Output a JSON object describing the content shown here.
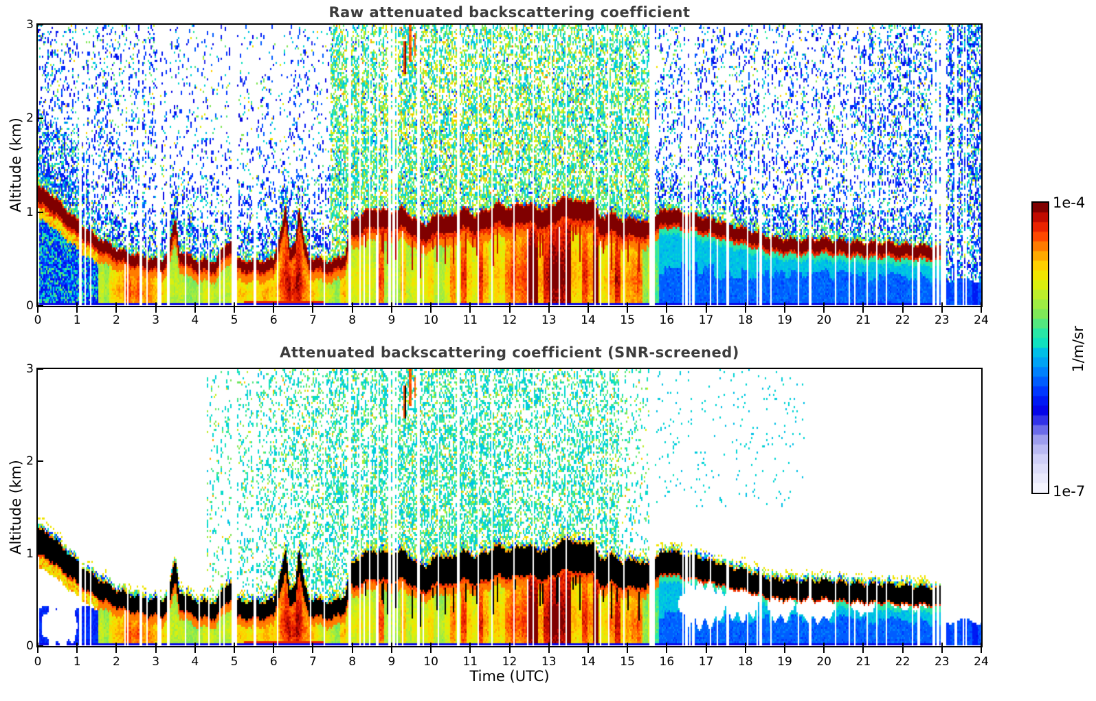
{
  "figure": {
    "background": "#ffffff",
    "title_color": "#3c3c3c"
  },
  "chart_data": {
    "type": "heatmap",
    "panels": [
      {
        "id": "raw",
        "title": "Raw attenuated backscattering coefficient",
        "screened": false
      },
      {
        "id": "screened",
        "title": "Attenuated backscattering coefficient (SNR-screened)",
        "screened": true
      }
    ],
    "x": {
      "label": "Time (UTC)",
      "min": 0,
      "max": 24,
      "ticks": [
        "0",
        "1",
        "2",
        "3",
        "4",
        "5",
        "6",
        "7",
        "8",
        "9",
        "10",
        "11",
        "12",
        "13",
        "14",
        "15",
        "16",
        "17",
        "18",
        "19",
        "20",
        "21",
        "22",
        "23",
        "24"
      ]
    },
    "y": {
      "label": "Altitude (km)",
      "min": 0,
      "max": 3,
      "ticks": [
        "0",
        "1",
        "2",
        "3"
      ]
    },
    "colorbar": {
      "max_label": "1e-4",
      "min_label": "1e-7",
      "unit": "1/m/sr",
      "scale": "log10",
      "vmin": 1e-07,
      "vmax": 0.0001,
      "steps": 30,
      "stops": [
        [
          0.0,
          "#f4f4fe"
        ],
        [
          0.05,
          "#e4e4fb"
        ],
        [
          0.1,
          "#cfcff8"
        ],
        [
          0.14,
          "#b4b4f2"
        ],
        [
          0.18,
          "#9292ec"
        ],
        [
          0.22,
          "#4444e8"
        ],
        [
          0.27,
          "#0000e8"
        ],
        [
          0.33,
          "#0033ff"
        ],
        [
          0.39,
          "#0077ff"
        ],
        [
          0.45,
          "#00b4f0"
        ],
        [
          0.51,
          "#00dcd0"
        ],
        [
          0.57,
          "#2ae8a4"
        ],
        [
          0.63,
          "#7ce85a"
        ],
        [
          0.69,
          "#b4ee34"
        ],
        [
          0.75,
          "#e8f000"
        ],
        [
          0.8,
          "#ffd000"
        ],
        [
          0.85,
          "#ff9500"
        ],
        [
          0.9,
          "#ff4800"
        ],
        [
          0.95,
          "#e01000"
        ],
        [
          1.0,
          "#800000"
        ]
      ]
    },
    "layer": {
      "end_time": 23.05,
      "times": [
        0,
        0.3,
        0.7,
        1.0,
        1.3,
        1.6,
        2.0,
        2.4,
        2.8,
        3.2,
        3.4,
        3.5,
        3.6,
        4.0,
        4.5,
        4.9,
        4.98,
        5.1,
        5.5,
        6.0,
        6.25,
        6.32,
        6.4,
        6.55,
        6.65,
        6.75,
        6.9,
        7.2,
        7.5,
        7.8,
        8.0,
        8.3,
        8.6,
        9.0,
        9.3,
        9.6,
        9.9,
        10.2,
        10.5,
        10.8,
        11.1,
        11.4,
        11.7,
        12.0,
        12.3,
        12.6,
        12.9,
        13.2,
        13.5,
        13.8,
        14.1,
        14.3,
        14.6,
        14.9,
        15.2,
        15.5,
        15.8,
        16.1,
        16.4,
        16.7,
        17.0,
        17.4,
        17.8,
        18.2,
        18.6,
        19.0,
        19.5,
        20.0,
        20.5,
        21.0,
        21.5,
        22.0,
        22.5,
        23.0
      ],
      "top_km": [
        1.28,
        1.22,
        1.05,
        0.92,
        0.8,
        0.72,
        0.62,
        0.56,
        0.52,
        0.5,
        0.75,
        0.95,
        0.6,
        0.5,
        0.48,
        0.72,
        0.55,
        0.5,
        0.48,
        0.5,
        0.95,
        1.05,
        0.6,
        0.7,
        1.08,
        0.75,
        0.52,
        0.5,
        0.48,
        0.55,
        0.9,
        1.02,
        1.05,
        1.0,
        1.05,
        0.92,
        0.88,
        1.0,
        0.95,
        1.05,
        0.98,
        1.02,
        1.1,
        1.05,
        1.1,
        1.08,
        1.02,
        1.12,
        1.18,
        1.1,
        1.15,
        0.95,
        1.0,
        0.92,
        0.95,
        0.88,
        1.0,
        1.05,
        1.0,
        0.98,
        0.95,
        0.9,
        0.85,
        0.8,
        0.74,
        0.72,
        0.71,
        0.72,
        0.7,
        0.68,
        0.68,
        0.66,
        0.65,
        0.65
      ]
    },
    "below_intensity": {
      "times": [
        0,
        1,
        1.8,
        2.2,
        2.6,
        3.0,
        3.5,
        4.0,
        4.5,
        5.0,
        5.5,
        6.0,
        6.3,
        6.6,
        6.9,
        7.2,
        7.6,
        8.0,
        8.5,
        9.0,
        9.5,
        10.0,
        10.5,
        11.0,
        11.5,
        12.0,
        12.5,
        13.0,
        13.5,
        14.0,
        14.4,
        14.8,
        15.2,
        15.6,
        16.0,
        16.5,
        17.0,
        18.0,
        19.0,
        20.0,
        21.0,
        22.0,
        23.0,
        24.0
      ],
      "vals": [
        0.62,
        0.6,
        0.68,
        0.82,
        0.86,
        0.78,
        0.7,
        0.66,
        0.68,
        0.72,
        0.74,
        0.78,
        0.88,
        0.95,
        0.85,
        0.72,
        0.64,
        0.78,
        0.8,
        0.78,
        0.74,
        0.76,
        0.8,
        0.86,
        0.82,
        0.88,
        0.9,
        0.92,
        0.88,
        0.9,
        0.86,
        0.82,
        0.78,
        0.66,
        0.58,
        0.52,
        0.5,
        0.46,
        0.43,
        0.41,
        0.4,
        0.39,
        0.36,
        0.34
      ]
    },
    "stripe_amp": {
      "early": 0.06,
      "convective": 0.16,
      "late": 0.08
    },
    "gaps": [
      {
        "t": 1.08,
        "w": 0.022
      },
      {
        "t": 1.2,
        "w": 0.022
      },
      {
        "t": 1.34,
        "w": 0.022
      },
      {
        "t": 2.3,
        "w": 0.022
      },
      {
        "t": 2.62,
        "w": 0.022
      },
      {
        "t": 2.78,
        "w": 0.022
      },
      {
        "t": 3.08,
        "w": 0.022
      },
      {
        "t": 3.32,
        "w": 0.022
      },
      {
        "t": 3.76,
        "w": 0.022
      },
      {
        "t": 4.12,
        "w": 0.022
      },
      {
        "t": 4.36,
        "w": 0.022
      },
      {
        "t": 4.62,
        "w": 0.022
      },
      {
        "t": 4.75,
        "w": 0.022
      },
      {
        "t": 4.98,
        "w": 0.04
      },
      {
        "t": 5.06,
        "w": 0.022
      },
      {
        "t": 5.52,
        "w": 0.022
      },
      {
        "t": 6.1,
        "w": 0.022
      },
      {
        "t": 6.95,
        "w": 0.022
      },
      {
        "t": 7.3,
        "w": 0.022
      },
      {
        "t": 7.94,
        "w": 0.03
      },
      {
        "t": 8.2,
        "w": 0.022
      },
      {
        "t": 8.45,
        "w": 0.022
      },
      {
        "t": 8.65,
        "w": 0.03
      },
      {
        "t": 8.95,
        "w": 0.025
      },
      {
        "t": 9.05,
        "w": 0.025
      },
      {
        "t": 9.15,
        "w": 0.025
      },
      {
        "t": 9.68,
        "w": 0.022
      },
      {
        "t": 10.18,
        "w": 0.022
      },
      {
        "t": 10.7,
        "w": 0.022
      },
      {
        "t": 11.2,
        "w": 0.022
      },
      {
        "t": 11.55,
        "w": 0.022
      },
      {
        "t": 12.12,
        "w": 0.022
      },
      {
        "t": 12.6,
        "w": 0.022
      },
      {
        "t": 13.05,
        "w": 0.022
      },
      {
        "t": 13.45,
        "w": 0.022
      },
      {
        "t": 14.18,
        "w": 0.022
      },
      {
        "t": 14.52,
        "w": 0.022
      },
      {
        "t": 14.9,
        "w": 0.022
      },
      {
        "t": 15.58,
        "w": 0.03
      },
      {
        "t": 15.66,
        "w": 0.022
      },
      {
        "t": 16.42,
        "w": 0.022
      },
      {
        "t": 16.5,
        "w": 0.022
      },
      {
        "t": 16.6,
        "w": 0.022
      },
      {
        "t": 16.68,
        "w": 0.022
      },
      {
        "t": 17.1,
        "w": 0.022
      },
      {
        "t": 17.55,
        "w": 0.022
      },
      {
        "t": 18.05,
        "w": 0.022
      },
      {
        "t": 18.4,
        "w": 0.03
      },
      {
        "t": 18.65,
        "w": 0.022
      },
      {
        "t": 19.35,
        "w": 0.022
      },
      {
        "t": 19.65,
        "w": 0.022
      },
      {
        "t": 20.3,
        "w": 0.022
      },
      {
        "t": 20.65,
        "w": 0.022
      },
      {
        "t": 21.1,
        "w": 0.022
      },
      {
        "t": 21.35,
        "w": 0.022
      },
      {
        "t": 21.6,
        "w": 0.022
      },
      {
        "t": 22.25,
        "w": 0.022
      },
      {
        "t": 22.8,
        "w": 0.025
      },
      {
        "t": 22.9,
        "w": 0.025
      },
      {
        "t": 23.0,
        "w": 0.025
      },
      {
        "t": 23.08,
        "w": 0.025
      },
      {
        "t": 23.35,
        "w": 0.03
      },
      {
        "t": 23.55,
        "w": 0.03
      },
      {
        "t": 23.62,
        "w": 0.022
      }
    ],
    "plume": {
      "raw": {
        "t0": 7.45,
        "t1": 15.6
      },
      "screened": {
        "t0": 4.3,
        "t1": 15.65,
        "center": 10.0,
        "sigma": 4.5,
        "peak": 0.55
      }
    },
    "streaks": [
      {
        "t": 9.34,
        "w": 0.04,
        "z0": 2.47,
        "z1": 2.82,
        "core": true
      },
      {
        "t": 9.47,
        "w": 0.022,
        "z0": 2.6,
        "z1": 3.0,
        "core": false
      },
      {
        "t": 9.58,
        "w": 0.018,
        "z0": 2.68,
        "z1": 2.92,
        "core": false
      }
    ],
    "voids": [
      {
        "tc": 0.55,
        "zc": 0.22,
        "rt": 0.45,
        "rz": 0.24
      },
      {
        "tc": 16.9,
        "zc": 0.45,
        "rt": 0.6,
        "rz": 0.22
      },
      {
        "tc": 17.9,
        "zc": 0.5,
        "rt": 0.45,
        "rz": 0.2
      },
      {
        "tc": 18.9,
        "zc": 0.45,
        "rt": 0.35,
        "rz": 0.16
      },
      {
        "tc": 19.8,
        "zc": 0.42,
        "rt": 0.5,
        "rz": 0.14
      },
      {
        "tc": 21.0,
        "zc": 0.45,
        "rt": 0.3,
        "rz": 0.1
      },
      {
        "tc": 22.2,
        "zc": 0.5,
        "rt": 0.55,
        "rz": 0.1
      }
    ],
    "seed": 42
  }
}
